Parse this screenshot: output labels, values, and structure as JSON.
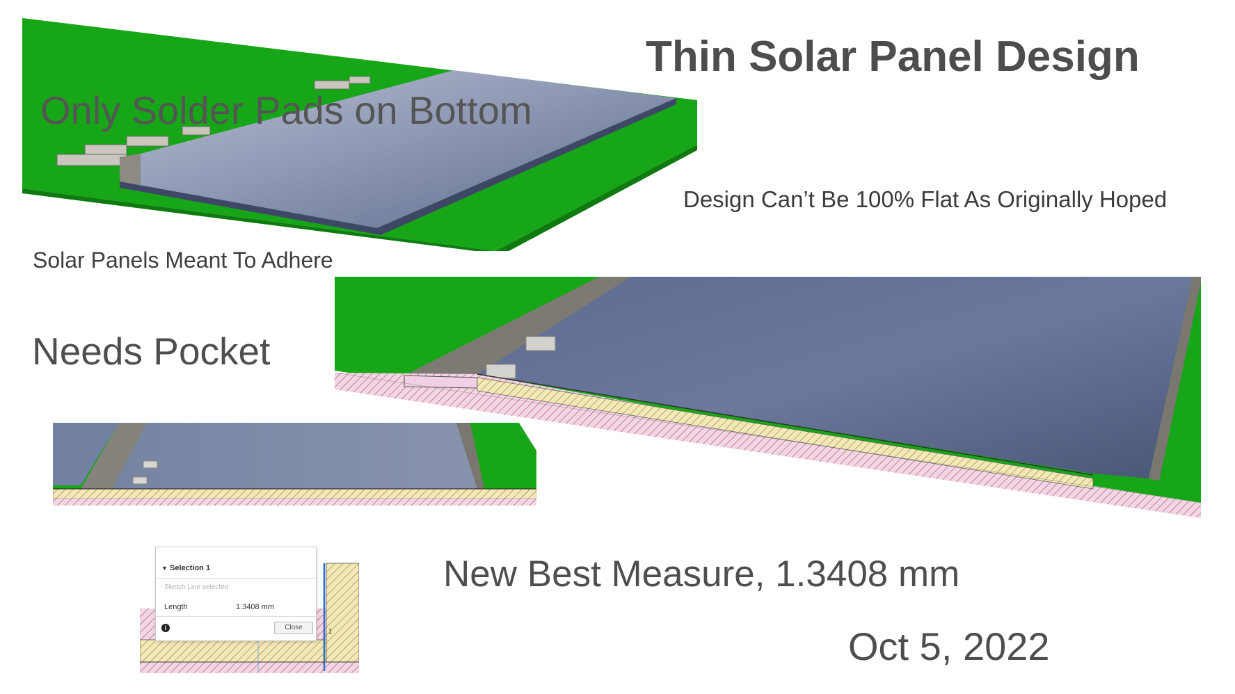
{
  "slide": {
    "title": "Thin Solar Panel Design",
    "subtitle": "Design Can’t Be 100% Flat As Originally Hoped",
    "note_solder": "Only Solder Pads on Bottom",
    "note_adhere": "Solar Panels Meant To Adhere",
    "note_pocket": "Needs Pocket",
    "measure": "New Best Measure, 1.3408 mm",
    "date": "Oct 5, 2022"
  },
  "dialog": {
    "header": "Selection 1",
    "selected": "Sketch Line selected",
    "length_label": "Length",
    "length_value": "1.3408 mm",
    "close_label": "Close",
    "info_glyph": "i",
    "dim_marker": "1"
  },
  "colors": {
    "pcb_green": "#14a814",
    "panel_blue": "#5c6a8c",
    "strip_gray": "#7a7670",
    "layer_tan": "#f2e6b0",
    "layer_pink": "#f0d0e0",
    "title_text": "#4d4d4d"
  },
  "icons": [
    "chevron-down-icon",
    "info-icon"
  ]
}
